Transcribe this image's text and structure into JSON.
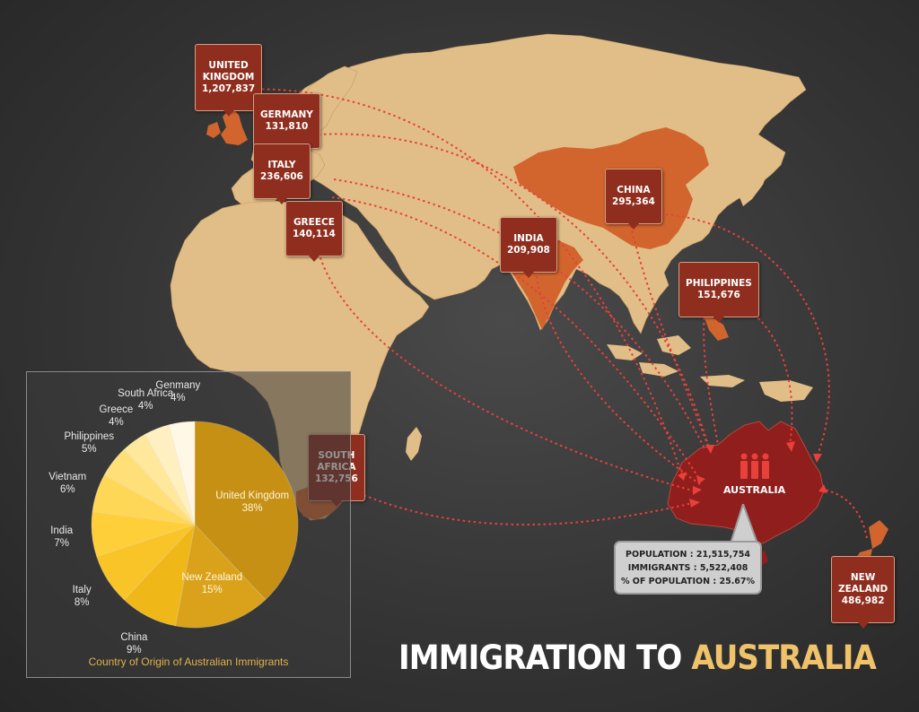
{
  "title": {
    "part1": "IMMIGRATION TO",
    "part2": "AUSTRALIA"
  },
  "destination": {
    "name": "AUSTRALIA",
    "population_line": "POPULATION : 21,515,754",
    "immigrants_line": "IMMIGRANTS : 5,522,408",
    "percent_line": "% OF POPULATION : 25.67%"
  },
  "origins": [
    {
      "id": "uk",
      "name": "UNITED\nKINGDOM",
      "count": "1,207,837"
    },
    {
      "id": "germany",
      "name": "GERMANY",
      "count": "131,810"
    },
    {
      "id": "italy",
      "name": "ITALY",
      "count": "236,606"
    },
    {
      "id": "greece",
      "name": "GREECE",
      "count": "140,114"
    },
    {
      "id": "india",
      "name": "INDIA",
      "count": "209,908"
    },
    {
      "id": "china",
      "name": "CHINA",
      "count": "295,364"
    },
    {
      "id": "philippines",
      "name": "PHILIPPINES",
      "count": "151,676"
    },
    {
      "id": "south-africa",
      "name": "SOUTH\nAFRICA",
      "count": "132,756"
    },
    {
      "id": "new-zealand",
      "name": "NEW\nZEALAND",
      "count": "486,982"
    }
  ],
  "colors": {
    "land": "#e1be87",
    "highlight_land": "#d2652e",
    "destination_land": "#8f1e1c",
    "arrow": "#e8403a",
    "label_bg": "#8f2e1f",
    "accent": "#f0c36a"
  },
  "chart_data": {
    "type": "pie",
    "title": "Country of Origin of Australian Immigrants",
    "categories": [
      "United Kingdom",
      "New Zealand",
      "China",
      "Italy",
      "India",
      "Vietnam",
      "Philippines",
      "Greece",
      "South Africa",
      "Genmany"
    ],
    "values": [
      38,
      15,
      9,
      8,
      7,
      6,
      5,
      4,
      4,
      4
    ],
    "value_labels": [
      "38%",
      "15%",
      "9%",
      "8%",
      "7%",
      "6%",
      "5%",
      "4%",
      "4%",
      "4%"
    ],
    "colors": [
      "#c59014",
      "#d9a21a",
      "#f0b718",
      "#f8c427",
      "#ffcf3a",
      "#ffd757",
      "#ffdf78",
      "#ffe79b",
      "#fff0c2",
      "#fff8e6"
    ]
  }
}
